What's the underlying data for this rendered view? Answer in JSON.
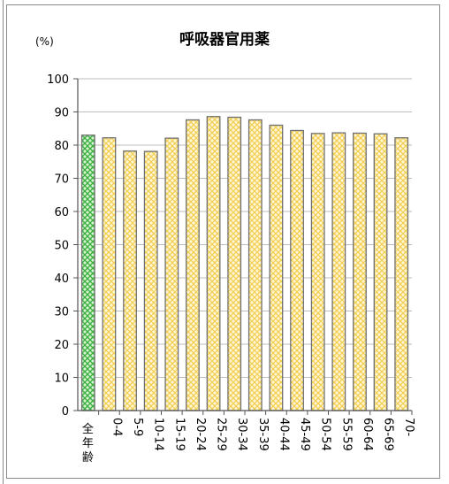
{
  "chart_data": {
    "type": "bar",
    "title": "呼吸器官用薬",
    "ylabel": "(%)",
    "xlabel": "",
    "ylim": [
      0,
      100
    ],
    "yticks": [
      0,
      10,
      20,
      30,
      40,
      50,
      60,
      70,
      80,
      90,
      100
    ],
    "grid": true,
    "legend": "none",
    "categories": [
      "全年齢",
      "0-4",
      "5-9",
      "10-14",
      "15-19",
      "20-24",
      "25-29",
      "30-34",
      "35-39",
      "40-44",
      "45-49",
      "50-54",
      "55-59",
      "60-64",
      "65-69",
      "70-"
    ],
    "values": [
      83,
      82.2,
      78.2,
      78.1,
      82.1,
      87.6,
      88.6,
      88.4,
      87.6,
      86,
      84.4,
      83.5,
      83.7,
      83.6,
      83.4,
      82.2
    ],
    "colors": {
      "first_bar": "#3cb043",
      "other_bars": "#f2cf52",
      "bar_outline": "#6f6f6f",
      "grid": "#bdbdbd"
    }
  }
}
